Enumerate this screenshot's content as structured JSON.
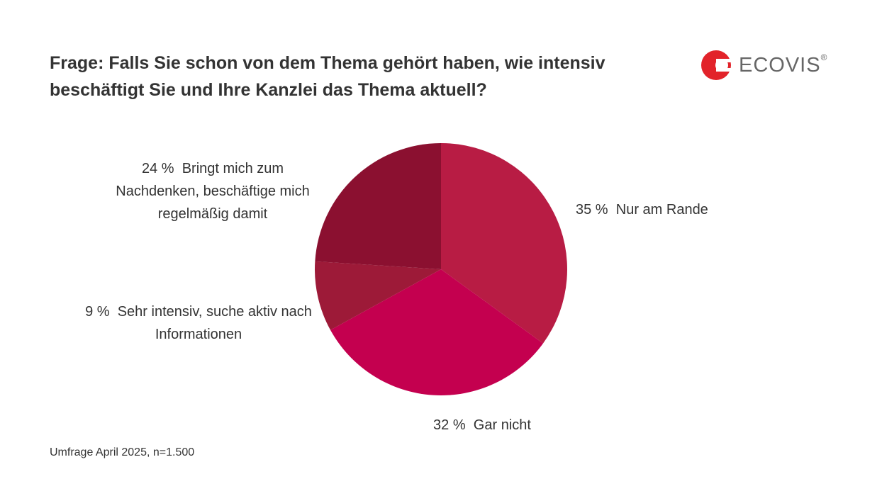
{
  "chart_data": {
    "type": "pie",
    "title": "Frage: Falls Sie schon von dem Thema gehört haben, wie intensiv beschäftigt Sie und Ihre Kanzlei das Thema aktuell?",
    "categories": [
      "Nur am Rande",
      "Gar nicht",
      "Sehr intensiv, suche aktiv nach Informationen",
      "Bringt mich zum Nachdenken, beschäftige mich regelmäßig damit"
    ],
    "values": [
      35,
      32,
      9,
      24
    ],
    "value_labels": [
      "35 %",
      "32 %",
      "9 %",
      "24 %"
    ],
    "colors": [
      "#b81c44",
      "#c4004f",
      "#9d1a38",
      "#8b1030"
    ],
    "source": "Umfrage April 2025, n=1.500"
  },
  "logo": {
    "text": "ECOVIS",
    "mark": "®"
  }
}
